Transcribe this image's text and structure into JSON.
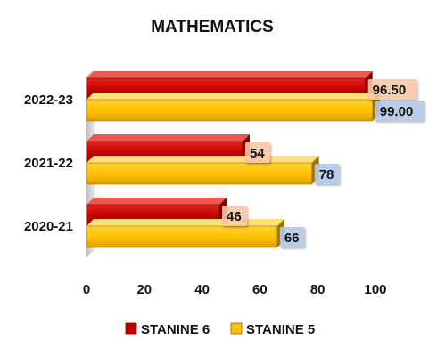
{
  "chart_data": {
    "type": "bar",
    "orientation": "horizontal",
    "title": "MATHEMATICS",
    "categories": [
      "2022-23",
      "2021-22",
      "2020-21"
    ],
    "series": [
      {
        "name": "STANINE 6",
        "values": [
          96.5,
          54,
          46
        ],
        "labels": [
          "96.50",
          "54",
          "46"
        ],
        "color": "#c00000",
        "label_bg": "#f6c8a8"
      },
      {
        "name": "STANINE 5",
        "values": [
          99.0,
          78,
          66
        ],
        "labels": [
          "99.00",
          "78",
          "66"
        ],
        "color": "#ffc000",
        "label_bg": "#b4c7e7"
      }
    ],
    "xlim": [
      0,
      100
    ],
    "xticks": [
      "0",
      "20",
      "40",
      "60",
      "80",
      "100"
    ],
    "grid": false,
    "legend": "bottom",
    "three_d": true
  }
}
